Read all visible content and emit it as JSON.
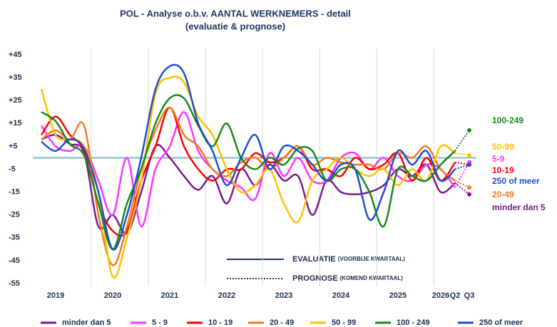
{
  "chart_data": {
    "type": "line",
    "title": "POL - Analyse o.b.v. AANTAL WERKNEMERS - detail",
    "subtitle": "(evaluatie & prognose)",
    "year_labels": [
      "2019",
      "2020",
      "2021",
      "2022",
      "2023",
      "2024",
      "2025"
    ],
    "categories": [
      null,
      null,
      null,
      null,
      null,
      null,
      null,
      null,
      null,
      null,
      null,
      null,
      null,
      null,
      null,
      null,
      null,
      null,
      null,
      null,
      null,
      null,
      null,
      null,
      null,
      null,
      null,
      null,
      "2026",
      "Q2",
      "Q3"
    ],
    "forecast_from": 29,
    "reference_line": 0,
    "ylim": [
      -55,
      45
    ],
    "yticks": [
      {
        "value": 45,
        "label": "+45"
      },
      {
        "value": 35,
        "label": "+35"
      },
      {
        "value": 25,
        "label": "+25"
      },
      {
        "value": 15,
        "label": "+15"
      },
      {
        "value": 5,
        "label": "+5"
      },
      -5,
      -15,
      -25,
      -35,
      -45,
      -55
    ],
    "annotations": [
      {
        "text": "EVALUATIE",
        "note": "(VOORBIJE KWARTAAL)"
      },
      {
        "text": "PROGNOSE",
        "note": "(KOMEND KWARTAAL)"
      }
    ],
    "series": [
      {
        "name": "minder dan 5",
        "end_label": "minder dan 5",
        "color": "#7b1c8e",
        "values": [
          8,
          10,
          6,
          2,
          -30,
          -25,
          -33,
          -15,
          5,
          0,
          -8,
          -14,
          -8,
          -20,
          -5,
          -12,
          -3,
          -10,
          -8,
          -25,
          -10,
          -15,
          -16,
          -15,
          -12,
          -5,
          -8,
          -3,
          -15,
          -11,
          -16
        ]
      },
      {
        "name": "5 - 9",
        "end_label": "5-9",
        "color": "#ff33ff",
        "values": [
          14,
          5,
          3,
          5,
          -10,
          -25,
          0,
          -30,
          -5,
          5,
          20,
          3,
          -5,
          -10,
          -13,
          -18,
          2,
          -8,
          0,
          -10,
          -10,
          0,
          2,
          -5,
          0,
          -8,
          -10,
          -3,
          -5,
          -13,
          -2
        ]
      },
      {
        "name": "10 - 19",
        "end_label": "10-19",
        "color": "#ff0000",
        "values": [
          10,
          18,
          10,
          3,
          -20,
          -32,
          -32,
          -10,
          5,
          22,
          5,
          -5,
          -10,
          -5,
          -5,
          2,
          -2,
          0,
          5,
          -5,
          -5,
          -8,
          0,
          -5,
          -3,
          2,
          -10,
          0,
          -10,
          -2,
          -3
        ]
      },
      {
        "name": "20 - 49",
        "end_label": "20-49",
        "color": "#f47b20",
        "values": [
          8,
          12,
          8,
          14,
          -25,
          -47,
          -30,
          -5,
          12,
          22,
          10,
          5,
          -5,
          -8,
          -2,
          0,
          -5,
          0,
          5,
          -3,
          0,
          -2,
          -3,
          -3,
          -5,
          2,
          0,
          5,
          -5,
          -10,
          -13
        ]
      },
      {
        "name": "50 - 99",
        "end_label": "50-99",
        "color": "#ffc000",
        "values": [
          30,
          10,
          8,
          5,
          -15,
          -52,
          -35,
          -10,
          28,
          35,
          33,
          18,
          10,
          -5,
          -15,
          -12,
          -5,
          -20,
          -28,
          -10,
          -5,
          0,
          -5,
          -8,
          -5,
          -12,
          -5,
          -10,
          5,
          2,
          1
        ]
      },
      {
        "name": "100 - 249",
        "end_label": "100-249",
        "color": "#1a8a1a",
        "values": [
          20,
          16,
          6,
          1,
          -20,
          -40,
          -20,
          -5,
          15,
          26,
          26,
          14,
          5,
          15,
          0,
          -5,
          0,
          -3,
          4,
          3,
          -10,
          -5,
          -5,
          -15,
          -30,
          -5,
          -8,
          -10,
          -3,
          3,
          12
        ]
      },
      {
        "name": "250 of meer",
        "end_label": "250 of meer",
        "color": "#1f4fd0",
        "values": [
          7,
          3,
          8,
          4,
          -15,
          -40,
          -25,
          0,
          30,
          40,
          37,
          15,
          3,
          -12,
          0,
          10,
          -5,
          5,
          3,
          -3,
          -10,
          -3,
          -5,
          -27,
          -15,
          3,
          -3,
          3,
          -10,
          -5,
          -3
        ]
      }
    ]
  }
}
